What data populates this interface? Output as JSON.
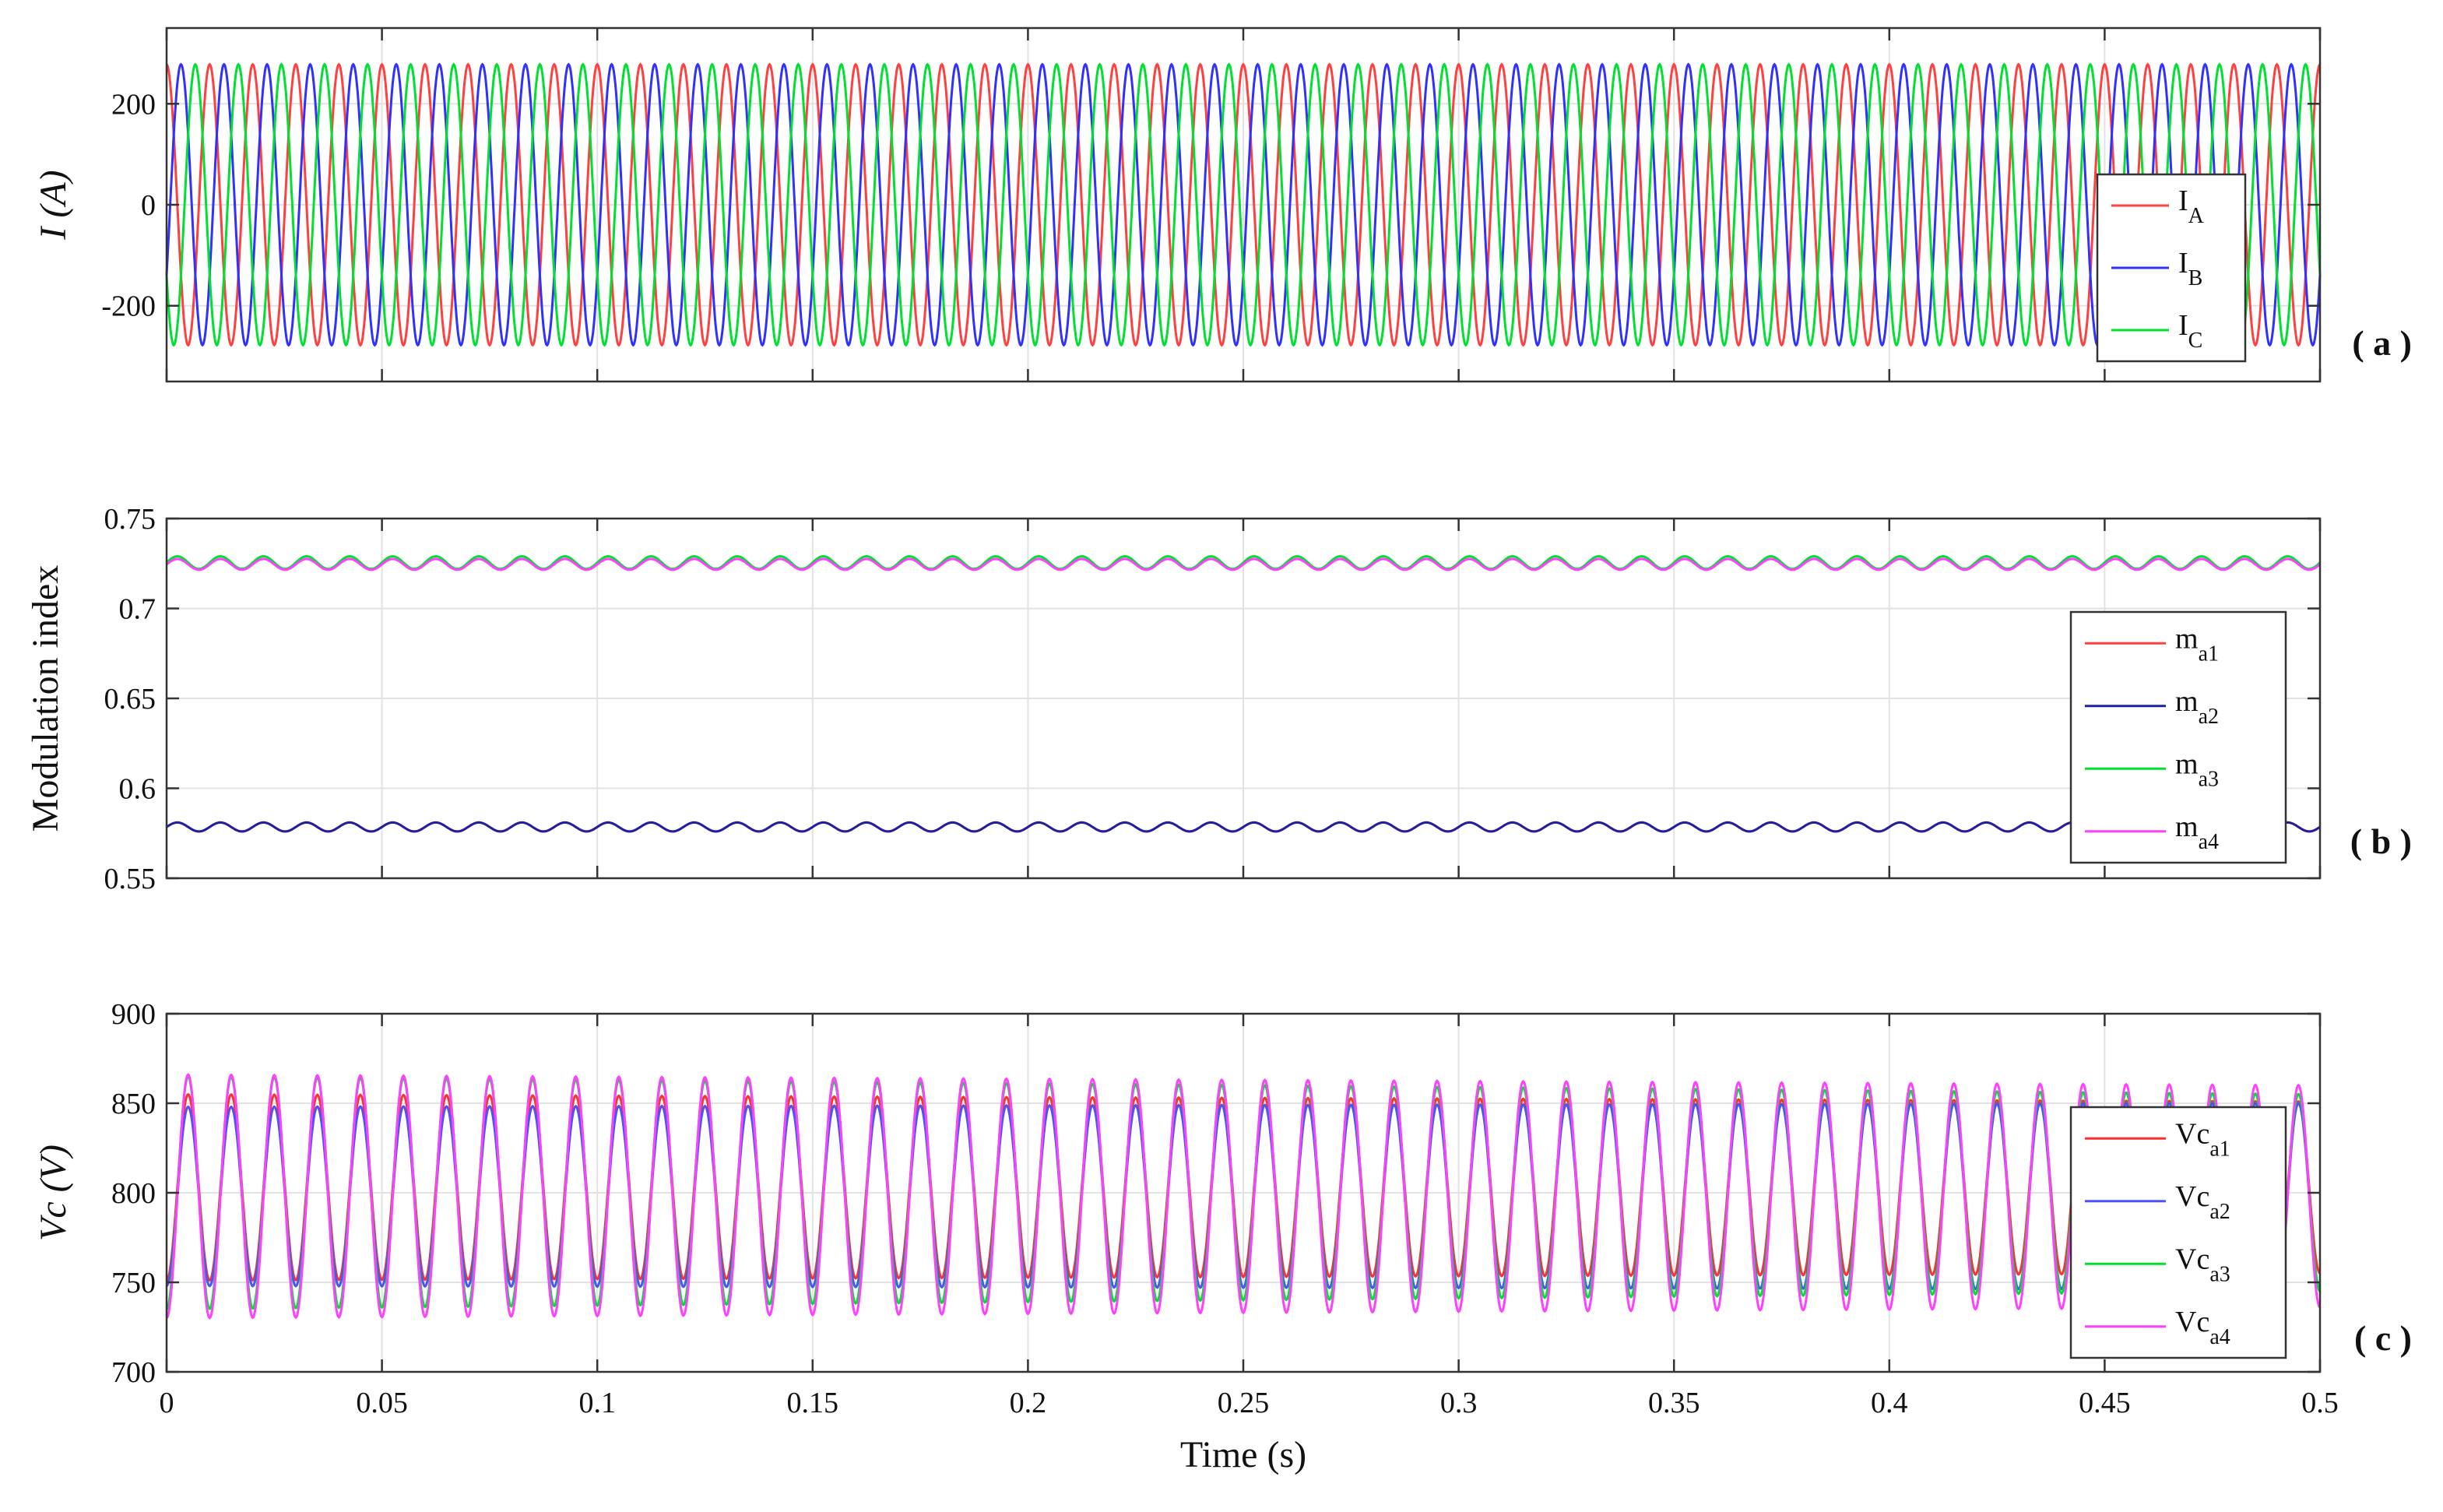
{
  "chart_data": [
    {
      "id": "a",
      "type": "line",
      "panel_label": "( a )",
      "ylabel": "I (A)",
      "ylabel_italic": true,
      "xlim": [
        0,
        0.5
      ],
      "ylim": [
        -350,
        350
      ],
      "yticks": [
        {
          "v": 200,
          "label": "200"
        },
        {
          "v": 0,
          "label": "0"
        },
        {
          "v": -200,
          "label": "-200"
        }
      ],
      "grid": true,
      "legend_position": "right-middle",
      "series": [
        {
          "name": "I",
          "sub": "A",
          "color": "#ff4040",
          "kind": "sine",
          "amplitude": 278,
          "offset": 0,
          "frequency": 100,
          "phase_deg": 90
        },
        {
          "name": "I",
          "sub": "B",
          "color": "#3030ff",
          "kind": "sine",
          "amplitude": 278,
          "offset": 0,
          "frequency": 100,
          "phase_deg": -30
        },
        {
          "name": "I",
          "sub": "C",
          "color": "#00e030",
          "kind": "sine",
          "amplitude": 278,
          "offset": 0,
          "frequency": 100,
          "phase_deg": 210
        }
      ]
    },
    {
      "id": "b",
      "type": "line",
      "panel_label": "( b )",
      "ylabel": "Modulation index",
      "ylabel_italic": false,
      "xlim": [
        0,
        0.5
      ],
      "ylim": [
        0.55,
        0.75
      ],
      "yticks": [
        {
          "v": 0.75,
          "label": "0.75"
        },
        {
          "v": 0.7,
          "label": "0.7"
        },
        {
          "v": 0.65,
          "label": "0.65"
        },
        {
          "v": 0.6,
          "label": "0.6"
        },
        {
          "v": 0.55,
          "label": "0.55"
        }
      ],
      "grid": true,
      "legend_position": "right-bottom",
      "series": [
        {
          "name": "m",
          "sub": "a1",
          "color": "#ff4040",
          "kind": "sine",
          "amplitude": 0.0025,
          "offset": 0.5785,
          "frequency": 100,
          "phase_deg": 0
        },
        {
          "name": "m",
          "sub": "a2",
          "color": "#2020a0",
          "kind": "sine",
          "amplitude": 0.0025,
          "offset": 0.5785,
          "frequency": 100,
          "phase_deg": 0
        },
        {
          "name": "m",
          "sub": "a3",
          "color": "#00e030",
          "kind": "sine",
          "amplitude": 0.0035,
          "offset": 0.7255,
          "frequency": 100,
          "phase_deg": 0
        },
        {
          "name": "m",
          "sub": "a4",
          "color": "#ff40ff",
          "kind": "sine",
          "amplitude": 0.003,
          "offset": 0.7245,
          "frequency": 100,
          "phase_deg": 0
        }
      ]
    },
    {
      "id": "c",
      "type": "line",
      "panel_label": "( c )",
      "ylabel": "Vc (V)",
      "ylabel_italic": true,
      "xlim": [
        0,
        0.5
      ],
      "ylim": [
        700,
        900
      ],
      "yticks": [
        {
          "v": 900,
          "label": "900"
        },
        {
          "v": 850,
          "label": "850"
        },
        {
          "v": 800,
          "label": "800"
        },
        {
          "v": 750,
          "label": "750"
        },
        {
          "v": 700,
          "label": "700"
        }
      ],
      "xticks": [
        {
          "v": 0,
          "label": "0"
        },
        {
          "v": 0.05,
          "label": "0.05"
        },
        {
          "v": 0.1,
          "label": "0.1"
        },
        {
          "v": 0.15,
          "label": "0.15"
        },
        {
          "v": 0.2,
          "label": "0.2"
        },
        {
          "v": 0.25,
          "label": "0.25"
        },
        {
          "v": 0.3,
          "label": "0.3"
        },
        {
          "v": 0.35,
          "label": "0.35"
        },
        {
          "v": 0.4,
          "label": "0.4"
        },
        {
          "v": 0.45,
          "label": "0.45"
        },
        {
          "v": 0.5,
          "label": "0.5"
        }
      ],
      "xlabel": "Time (s)",
      "grid": true,
      "legend_position": "right-bottom",
      "series": [
        {
          "name": "Vc",
          "sub": "a1",
          "color": "#ff3030",
          "kind": "sine_varying",
          "offset": 803,
          "frequency": 100,
          "phase_deg": -90,
          "amplitude_start": 52,
          "amplitude_end": 48
        },
        {
          "name": "Vc",
          "sub": "a2",
          "color": "#5050ff",
          "kind": "sine_varying",
          "offset": 798,
          "frequency": 100,
          "phase_deg": -90,
          "amplitude_start": 50,
          "amplitude_end": 52
        },
        {
          "name": "Vc",
          "sub": "a3",
          "color": "#00e030",
          "kind": "sine_varying",
          "offset": 800,
          "frequency": 100,
          "phase_deg": -90,
          "amplitude_start": 65,
          "amplitude_end": 55
        },
        {
          "name": "Vc",
          "sub": "a4",
          "color": "#ff40ff",
          "kind": "sine_varying",
          "offset": 798,
          "frequency": 100,
          "phase_deg": -90,
          "amplitude_start": 68,
          "amplitude_end": 62
        }
      ]
    }
  ]
}
